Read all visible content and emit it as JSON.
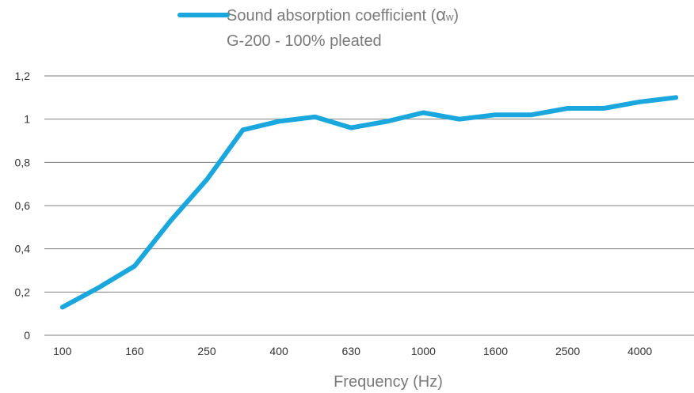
{
  "chart_data": {
    "type": "line",
    "legend": {
      "line1": "Sound absorption coefficient (",
      "symbol": "α",
      "subscript": "w",
      "close": ")",
      "line2": "G-200 - 100% pleated",
      "position": "top-center"
    },
    "xlabel": "Frequency (Hz)",
    "ylabel": "",
    "x": [
      "100",
      "125",
      "160",
      "200",
      "250",
      "315",
      "400",
      "500",
      "630",
      "800",
      "1000",
      "1250",
      "1600",
      "2000",
      "2500",
      "3150",
      "4000",
      "5000"
    ],
    "x_tick_labels": [
      "100",
      "",
      "160",
      "",
      "250",
      "",
      "400",
      "",
      "630",
      "",
      "1000",
      "",
      "1600",
      "",
      "2500",
      "",
      "4000",
      ""
    ],
    "y_ticks": [
      "0",
      "0,2",
      "0,4",
      "0,6",
      "0,8",
      "1",
      "1,2"
    ],
    "ylim": [
      0,
      1.2
    ],
    "grid": true,
    "series": [
      {
        "name": "Sound absorption coefficient (αw) G-200 - 100% pleated",
        "color": "#1aa7dd",
        "values": [
          0.13,
          0.22,
          0.32,
          0.53,
          0.72,
          0.95,
          0.99,
          1.01,
          0.96,
          0.99,
          1.03,
          1.0,
          1.02,
          1.02,
          1.05,
          1.05,
          1.08,
          1.1
        ]
      }
    ]
  }
}
